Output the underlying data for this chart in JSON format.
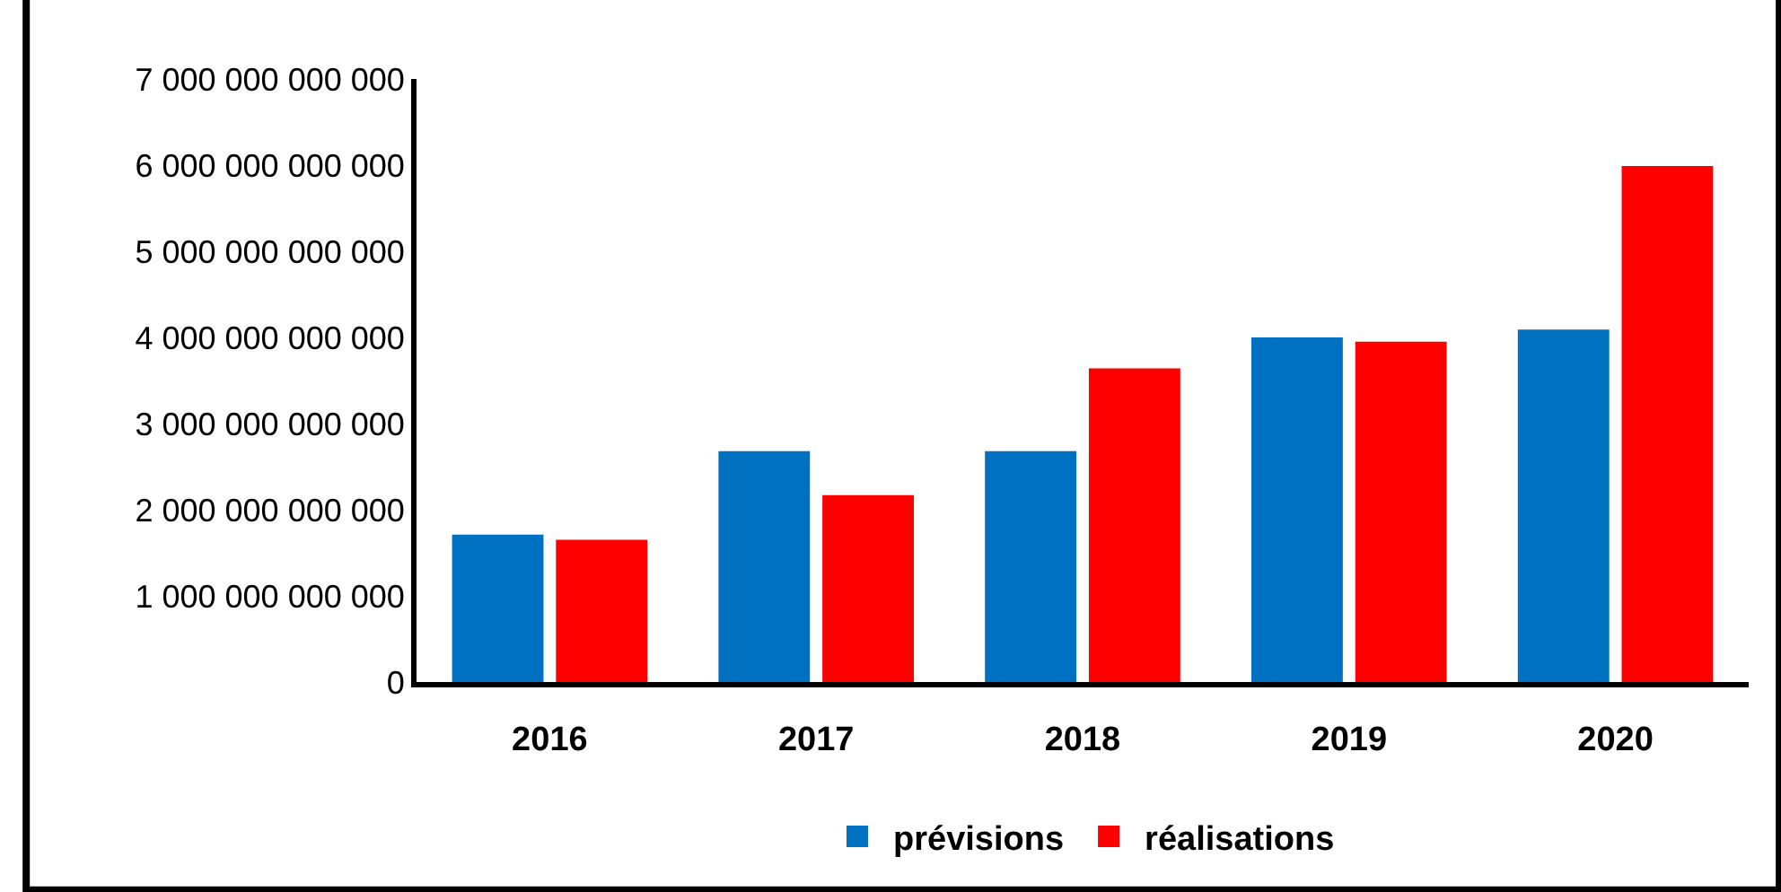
{
  "chart_data": {
    "type": "bar",
    "categories": [
      "2016",
      "2017",
      "2018",
      "2019",
      "2020"
    ],
    "series": [
      {
        "name": "prévisions",
        "color": "#0070c0",
        "values": [
          1710000000000.0,
          2680000000000.0,
          2680000000000.0,
          4000000000000.0,
          4090000000000.0
        ]
      },
      {
        "name": "réalisations",
        "color": "#ff0000",
        "values": [
          1650000000000.0,
          2170000000000.0,
          3640000000000.0,
          3950000000000.0,
          5990000000000.0
        ]
      }
    ],
    "ylim": [
      0,
      7000000000000.0
    ],
    "yticks": [
      0,
      {
        "value": 1000000000000.0,
        "label": "1 000 000 000 000"
      },
      {
        "value": 2000000000000.0,
        "label": "2 000 000 000 000"
      },
      {
        "value": 3000000000000.0,
        "label": "3 000 000 000 000"
      },
      {
        "value": 4000000000000.0,
        "label": "4 000 000 000 000"
      },
      {
        "value": 5000000000000.0,
        "label": "5 000 000 000 000"
      },
      {
        "value": 6000000000000.0,
        "label": "6 000 000 000 000"
      },
      {
        "value": 7000000000000.0,
        "label": "7 000 000 000 000"
      }
    ],
    "grid": false,
    "legend": "bottom"
  }
}
